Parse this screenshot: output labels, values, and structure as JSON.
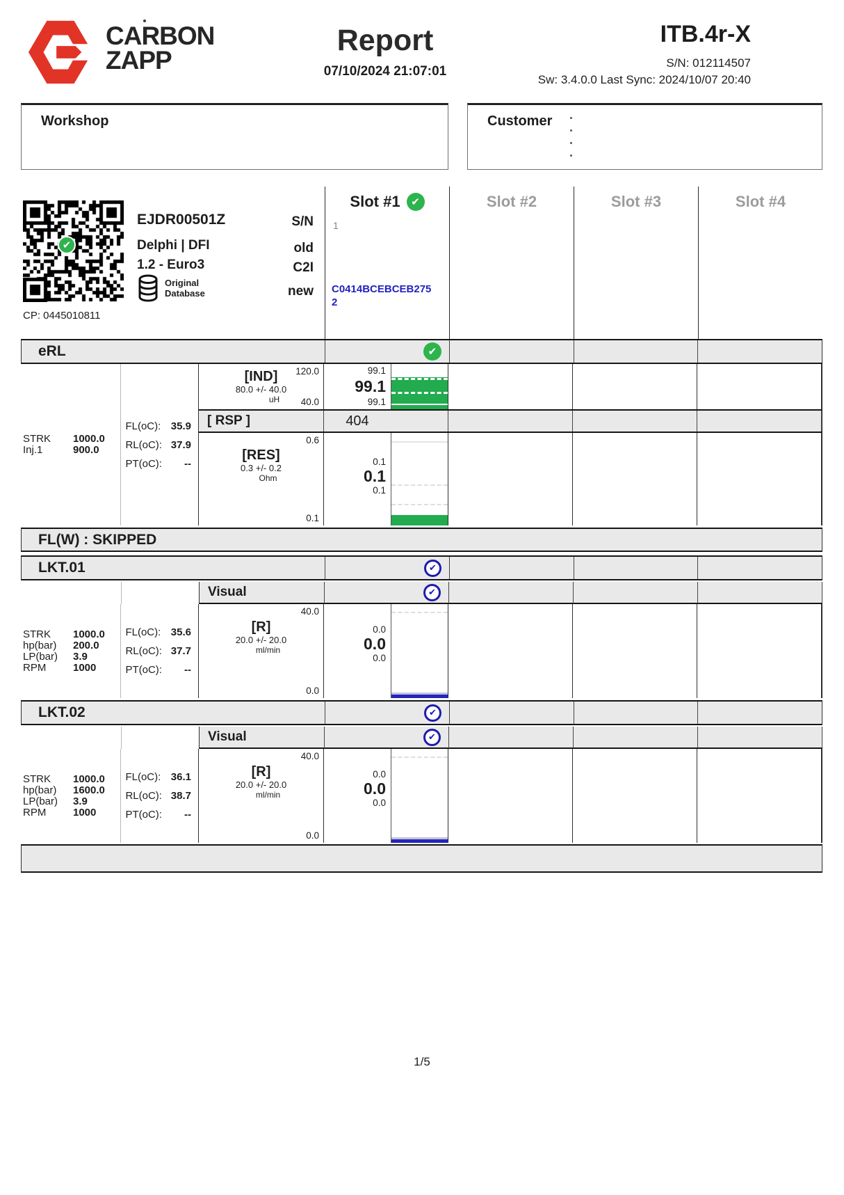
{
  "header": {
    "brand_top": "CARBON",
    "brand_bottom": "ZAPP",
    "title": "Report",
    "datetime": "07/10/2024 21:07:01",
    "device": "ITB.4r-X",
    "serial": "S/N: 012114507",
    "sync": "Sw: 3.4.0.0 Last Sync: 2024/10/07 20:40"
  },
  "boxes": {
    "workshop": "Workshop",
    "customer": "Customer"
  },
  "slots": {
    "s1": "Slot #1",
    "s2": "Slot #2",
    "s3": "Slot #3",
    "s4": "Slot #4"
  },
  "injector": {
    "code": "EJDR00501Z",
    "brand": "Delphi | DFI",
    "family": "1.2 - Euro3",
    "db1": "Original",
    "db2": "Database",
    "cp": "CP: 0445010811",
    "lbl_sn": "S/N",
    "lbl_old": "old",
    "lbl_c2i": "C2I",
    "lbl_new": "new",
    "slot1_old_sn": "1",
    "slot1_new_c2i": "C0414BCEBCEB2752"
  },
  "erl": {
    "title": "eRL",
    "params": [
      {
        "k": "STRK",
        "v": "1000.0"
      },
      {
        "k": "Inj.1",
        "v": "900.0"
      }
    ],
    "temps": [
      {
        "k": "FL(oC):",
        "v": "35.9"
      },
      {
        "k": "RL(oC):",
        "v": "37.9"
      },
      {
        "k": "PT(oC):",
        "v": "--"
      }
    ],
    "ind": {
      "name": "[IND]",
      "nominal": "80.0 +/- 40.0",
      "unit": "uH",
      "axis_max": "120.0",
      "axis_min": "40.0",
      "max": "99.1",
      "avg": "99.1",
      "min": "99.1"
    },
    "rsp": {
      "name": "[ RSP ]",
      "value": "404"
    },
    "res": {
      "name": "[RES]",
      "nominal": "0.3 +/- 0.2",
      "unit": "Ohm",
      "axis_max": "0.6",
      "axis_min": "0.1",
      "max": "0.1",
      "avg": "0.1",
      "min": "0.1"
    }
  },
  "flw": {
    "title": "FL(W) : SKIPPED"
  },
  "lkt1": {
    "title": "LKT.01",
    "visual": "Visual",
    "params": [
      {
        "k": "STRK",
        "v": "1000.0"
      },
      {
        "k": "hp(bar)",
        "v": "200.0"
      },
      {
        "k": "LP(bar)",
        "v": "3.9"
      },
      {
        "k": "RPM",
        "v": "1000"
      }
    ],
    "temps": [
      {
        "k": "FL(oC):",
        "v": "35.6"
      },
      {
        "k": "RL(oC):",
        "v": "37.7"
      },
      {
        "k": "PT(oC):",
        "v": "--"
      }
    ],
    "r": {
      "name": "[R]",
      "nominal": "20.0 +/- 20.0",
      "unit": "ml/min",
      "axis_max": "40.0",
      "axis_min": "0.0",
      "max": "0.0",
      "avg": "0.0",
      "min": "0.0"
    }
  },
  "lkt2": {
    "title": "LKT.02",
    "visual": "Visual",
    "params": [
      {
        "k": "STRK",
        "v": "1000.0"
      },
      {
        "k": "hp(bar)",
        "v": "1600.0"
      },
      {
        "k": "LP(bar)",
        "v": "3.9"
      },
      {
        "k": "RPM",
        "v": "1000"
      }
    ],
    "temps": [
      {
        "k": "FL(oC):",
        "v": "36.1"
      },
      {
        "k": "RL(oC):",
        "v": "38.7"
      },
      {
        "k": "PT(oC):",
        "v": "--"
      }
    ],
    "r": {
      "name": "[R]",
      "nominal": "20.0 +/- 20.0",
      "unit": "ml/min",
      "axis_max": "40.0",
      "axis_min": "0.0",
      "max": "0.0",
      "avg": "0.0",
      "min": "0.0"
    }
  },
  "footer": {
    "page": "1/5"
  },
  "colors": {
    "brand_red": "#e23327",
    "pass_green": "#2db44d",
    "bar_green": "#22ab4f",
    "code_blue": "#2222c0",
    "check_blue": "#1d1dae",
    "section_gray": "#e9e9e9"
  }
}
